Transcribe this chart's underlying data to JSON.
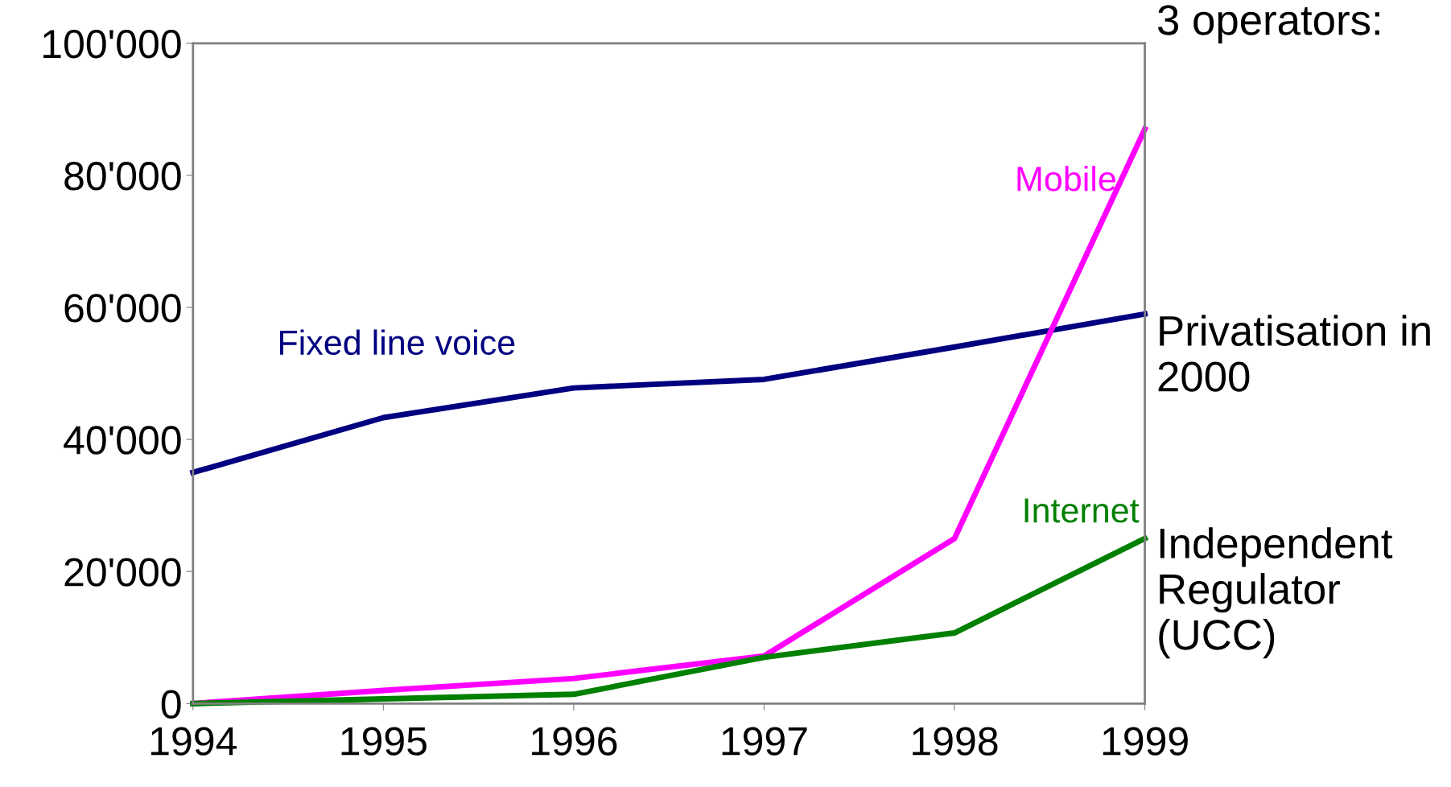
{
  "chart_data": {
    "type": "line",
    "x": [
      1994,
      1995,
      1996,
      1997,
      1998,
      1999
    ],
    "series": [
      {
        "name": "Fixed line voice",
        "color": "#000080",
        "values": [
          35000,
          43300,
          47800,
          49100,
          54000,
          59000
        ]
      },
      {
        "name": "Mobile",
        "color": "#ff00ff",
        "values": [
          0,
          2000,
          3800,
          7200,
          25000,
          87000
        ]
      },
      {
        "name": "Internet",
        "color": "#008000",
        "values": [
          0,
          700,
          1400,
          7000,
          10700,
          25000
        ]
      }
    ],
    "xlim": [
      1994,
      1999
    ],
    "xticks": [
      1994,
      1995,
      1996,
      1997,
      1998,
      1999
    ],
    "ylim": [
      0,
      100000
    ],
    "yticks": [
      0,
      {
        "value": 20000,
        "label": "20'000"
      },
      {
        "value": 40000,
        "label": "40'000"
      },
      {
        "value": 60000,
        "label": "60'000"
      },
      {
        "value": 80000,
        "label": "80'000"
      },
      {
        "value": 100000,
        "label": "100'000"
      }
    ],
    "grid": false,
    "legend": false,
    "marker": "none",
    "line_style": "solid",
    "annotations": [
      "3 operators:",
      "Privatisation in 2000",
      "Independent Regulator (UCC)"
    ]
  }
}
